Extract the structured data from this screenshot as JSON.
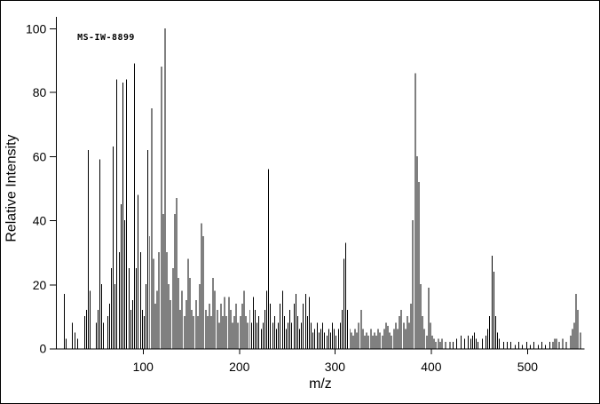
{
  "annotation": "MS-IW-8899",
  "colors": {
    "foreground": "#000000",
    "background": "#ffffff"
  },
  "chart_data": {
    "type": "bar",
    "subtype": "mass-spectrum-stick-plot",
    "title": "",
    "xlabel": "m/z",
    "ylabel": "Relative Intensity",
    "xlim": [
      10,
      560
    ],
    "ylim": [
      0,
      100
    ],
    "x_ticks": [
      100,
      200,
      300,
      400,
      500
    ],
    "y_ticks": [
      0,
      20,
      40,
      60,
      80,
      100
    ],
    "grid": false,
    "legend": "none",
    "peaks": [
      [
        18,
        17
      ],
      [
        20,
        3
      ],
      [
        27,
        8
      ],
      [
        29,
        5
      ],
      [
        32,
        3
      ],
      [
        39,
        10
      ],
      [
        41,
        12
      ],
      [
        43,
        62
      ],
      [
        45,
        18
      ],
      [
        51,
        8
      ],
      [
        53,
        12
      ],
      [
        55,
        59
      ],
      [
        57,
        20
      ],
      [
        59,
        8
      ],
      [
        63,
        10
      ],
      [
        65,
        14
      ],
      [
        67,
        25
      ],
      [
        69,
        63
      ],
      [
        71,
        20
      ],
      [
        73,
        84
      ],
      [
        75,
        30
      ],
      [
        77,
        45
      ],
      [
        79,
        83
      ],
      [
        81,
        40
      ],
      [
        83,
        84
      ],
      [
        85,
        25
      ],
      [
        87,
        12
      ],
      [
        89,
        15
      ],
      [
        91,
        89
      ],
      [
        93,
        25
      ],
      [
        95,
        48
      ],
      [
        97,
        30
      ],
      [
        99,
        12
      ],
      [
        101,
        10
      ],
      [
        103,
        20
      ],
      [
        105,
        62
      ],
      [
        107,
        35
      ],
      [
        109,
        75
      ],
      [
        111,
        28
      ],
      [
        113,
        14
      ],
      [
        115,
        18
      ],
      [
        117,
        30
      ],
      [
        119,
        88
      ],
      [
        121,
        42
      ],
      [
        123,
        100
      ],
      [
        125,
        30
      ],
      [
        127,
        20
      ],
      [
        129,
        15
      ],
      [
        131,
        25
      ],
      [
        133,
        42
      ],
      [
        135,
        47
      ],
      [
        137,
        22
      ],
      [
        139,
        12
      ],
      [
        141,
        18
      ],
      [
        143,
        10
      ],
      [
        145,
        15
      ],
      [
        147,
        28
      ],
      [
        149,
        22
      ],
      [
        151,
        12
      ],
      [
        153,
        10
      ],
      [
        155,
        15
      ],
      [
        157,
        10
      ],
      [
        159,
        20
      ],
      [
        161,
        39
      ],
      [
        163,
        35
      ],
      [
        165,
        12
      ],
      [
        167,
        10
      ],
      [
        169,
        14
      ],
      [
        171,
        10
      ],
      [
        173,
        22
      ],
      [
        175,
        18
      ],
      [
        177,
        12
      ],
      [
        179,
        8
      ],
      [
        181,
        14
      ],
      [
        183,
        10
      ],
      [
        185,
        16
      ],
      [
        187,
        10
      ],
      [
        189,
        16
      ],
      [
        191,
        12
      ],
      [
        193,
        8
      ],
      [
        195,
        10
      ],
      [
        197,
        14
      ],
      [
        199,
        8
      ],
      [
        201,
        10
      ],
      [
        203,
        14
      ],
      [
        205,
        18
      ],
      [
        207,
        10
      ],
      [
        209,
        8
      ],
      [
        211,
        12
      ],
      [
        213,
        8
      ],
      [
        215,
        16
      ],
      [
        217,
        12
      ],
      [
        219,
        8
      ],
      [
        221,
        10
      ],
      [
        223,
        6
      ],
      [
        225,
        8
      ],
      [
        227,
        12
      ],
      [
        229,
        18
      ],
      [
        231,
        56
      ],
      [
        233,
        14
      ],
      [
        235,
        8
      ],
      [
        237,
        10
      ],
      [
        239,
        6
      ],
      [
        241,
        8
      ],
      [
        243,
        14
      ],
      [
        245,
        18
      ],
      [
        247,
        10
      ],
      [
        249,
        6
      ],
      [
        251,
        8
      ],
      [
        253,
        12
      ],
      [
        255,
        8
      ],
      [
        257,
        14
      ],
      [
        259,
        17
      ],
      [
        261,
        10
      ],
      [
        263,
        6
      ],
      [
        265,
        8
      ],
      [
        267,
        14
      ],
      [
        269,
        17
      ],
      [
        271,
        10
      ],
      [
        273,
        16
      ],
      [
        275,
        8
      ],
      [
        277,
        5
      ],
      [
        279,
        6
      ],
      [
        281,
        8
      ],
      [
        283,
        5
      ],
      [
        285,
        6
      ],
      [
        287,
        8
      ],
      [
        289,
        5
      ],
      [
        291,
        4
      ],
      [
        293,
        6
      ],
      [
        295,
        5
      ],
      [
        297,
        8
      ],
      [
        299,
        6
      ],
      [
        301,
        4
      ],
      [
        303,
        6
      ],
      [
        305,
        8
      ],
      [
        307,
        12
      ],
      [
        309,
        28
      ],
      [
        311,
        33
      ],
      [
        313,
        12
      ],
      [
        315,
        6
      ],
      [
        317,
        5
      ],
      [
        319,
        4
      ],
      [
        321,
        6
      ],
      [
        323,
        5
      ],
      [
        325,
        8
      ],
      [
        327,
        12
      ],
      [
        329,
        6
      ],
      [
        331,
        4
      ],
      [
        333,
        5
      ],
      [
        335,
        4
      ],
      [
        337,
        6
      ],
      [
        339,
        4
      ],
      [
        341,
        5
      ],
      [
        343,
        4
      ],
      [
        345,
        6
      ],
      [
        347,
        5
      ],
      [
        349,
        4
      ],
      [
        351,
        6
      ],
      [
        353,
        8
      ],
      [
        355,
        7
      ],
      [
        357,
        5
      ],
      [
        359,
        4
      ],
      [
        361,
        6
      ],
      [
        363,
        8
      ],
      [
        365,
        6
      ],
      [
        367,
        10
      ],
      [
        369,
        12
      ],
      [
        371,
        8
      ],
      [
        373,
        6
      ],
      [
        375,
        10
      ],
      [
        377,
        8
      ],
      [
        379,
        14
      ],
      [
        381,
        40
      ],
      [
        383,
        86
      ],
      [
        385,
        60
      ],
      [
        387,
        52
      ],
      [
        389,
        20
      ],
      [
        391,
        10
      ],
      [
        393,
        6
      ],
      [
        395,
        4
      ],
      [
        397,
        19
      ],
      [
        399,
        8
      ],
      [
        401,
        4
      ],
      [
        403,
        3
      ],
      [
        405,
        2
      ],
      [
        407,
        3
      ],
      [
        409,
        2
      ],
      [
        411,
        3
      ],
      [
        415,
        2
      ],
      [
        419,
        2
      ],
      [
        423,
        2
      ],
      [
        427,
        3
      ],
      [
        431,
        4
      ],
      [
        435,
        3
      ],
      [
        439,
        4
      ],
      [
        441,
        3
      ],
      [
        443,
        4
      ],
      [
        445,
        5
      ],
      [
        447,
        3
      ],
      [
        449,
        2
      ],
      [
        453,
        3
      ],
      [
        457,
        4
      ],
      [
        459,
        6
      ],
      [
        461,
        10
      ],
      [
        463,
        29
      ],
      [
        465,
        24
      ],
      [
        467,
        10
      ],
      [
        469,
        5
      ],
      [
        471,
        3
      ],
      [
        475,
        2
      ],
      [
        479,
        2
      ],
      [
        483,
        2
      ],
      [
        487,
        1
      ],
      [
        491,
        2
      ],
      [
        495,
        1
      ],
      [
        499,
        2
      ],
      [
        503,
        1
      ],
      [
        507,
        2
      ],
      [
        511,
        1
      ],
      [
        515,
        2
      ],
      [
        519,
        1
      ],
      [
        523,
        2
      ],
      [
        527,
        2
      ],
      [
        529,
        3
      ],
      [
        531,
        3
      ],
      [
        533,
        2
      ],
      [
        537,
        3
      ],
      [
        541,
        2
      ],
      [
        545,
        4
      ],
      [
        547,
        6
      ],
      [
        549,
        8
      ],
      [
        551,
        17
      ],
      [
        553,
        12
      ],
      [
        555,
        5
      ]
    ]
  }
}
